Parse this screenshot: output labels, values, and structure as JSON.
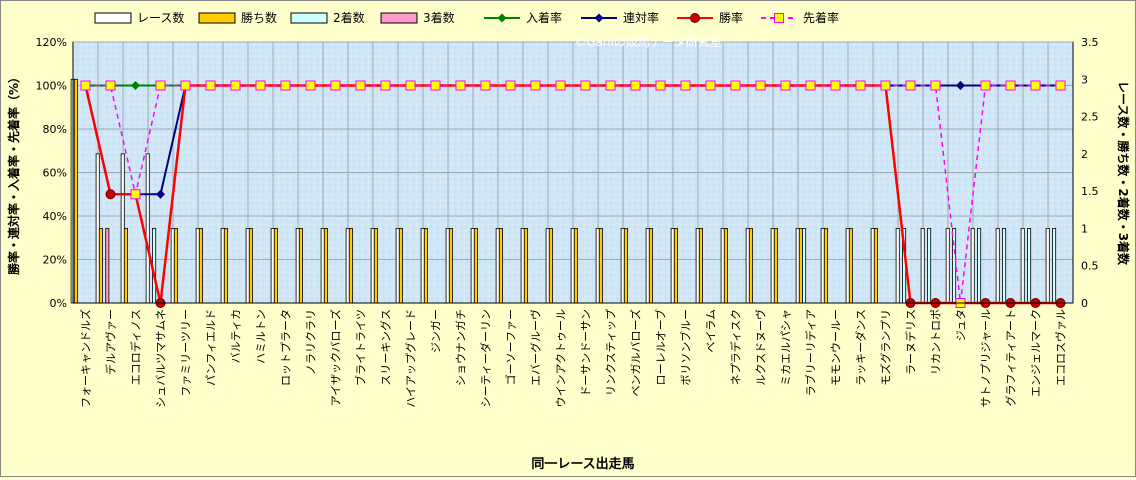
{
  "watermark": "©Ganiの競馬データ研究室",
  "chart_data": {
    "type": "bar+line",
    "title": "",
    "xlabel": "同一レース出走馬",
    "ylabel_left": "勝率・連対率・入着率・先着率（%）",
    "ylabel_right": "レース数・勝ち数・2着数・3着数",
    "ylim_left": [
      0,
      120
    ],
    "ylim_right": [
      0,
      3.5
    ],
    "yticks_left": [
      "0%",
      "20%",
      "40%",
      "60%",
      "80%",
      "100%",
      "120%"
    ],
    "yticks_right": [
      "0",
      "0.5",
      "1",
      "1.5",
      "2",
      "2.5",
      "3",
      "3.5"
    ],
    "grid": true,
    "legend_position": "top",
    "colors": {
      "races": "#ffffff",
      "wins": "#ffcc00",
      "second": "#ccffff",
      "third": "#ff99cc",
      "place_rate": "#008000",
      "rentai_rate": "#000080",
      "win_rate": "#ff0000",
      "lead_rate": "#ff00ff",
      "plot_bg": "#cfe6f7"
    },
    "categories": [
      "フォーキャンドルズ",
      "デルアヴァー",
      "エコロディノス",
      "シュバルツマサムネ",
      "ファミリーツリー",
      "パンフィエルド",
      "バルティカ",
      "ハミルトン",
      "ロットプラータ",
      "ノラリクラリ",
      "アイザックバローズ",
      "ブライトライツ",
      "スリーキングス",
      "ハイアップグレード",
      "ジンガー",
      "ショウナンガチ",
      "シーティーダーリン",
      "ゴーソーファー",
      "エバーグルーヴ",
      "ウインアクトゥール",
      "ドーサンドーサン",
      "リンクスティップ",
      "ベンガルバローズ",
      "ローレルオーブ",
      "ボリソンブルー",
      "ベイラム",
      "ネプラディスク",
      "ルクスドヌーヴ",
      "ミカエルパシャ",
      "ラブリーリディア",
      "モモンウールー",
      "ラッキーダンス",
      "モズグランプリ",
      "ラーヌデリス",
      "リカントロポ",
      "ジュタ",
      "サトノプリジャール",
      "グラフィティアート",
      "エンジェルマーク",
      "エコロスヴァル"
    ],
    "series": [
      {
        "name": "レース数",
        "kind": "bar",
        "axis": "right",
        "values": [
          3,
          2,
          2,
          2,
          1,
          1,
          1,
          1,
          1,
          1,
          1,
          1,
          1,
          1,
          1,
          1,
          1,
          1,
          1,
          1,
          1,
          1,
          1,
          1,
          1,
          1,
          1,
          1,
          1,
          1,
          1,
          1,
          1,
          1,
          1,
          1,
          1,
          1,
          1,
          1
        ]
      },
      {
        "name": "勝ち数",
        "kind": "bar",
        "axis": "right",
        "values": [
          3,
          1,
          1,
          0,
          1,
          1,
          1,
          1,
          1,
          1,
          1,
          1,
          1,
          1,
          1,
          1,
          1,
          1,
          1,
          1,
          1,
          1,
          1,
          1,
          1,
          1,
          1,
          1,
          1,
          1,
          1,
          1,
          1,
          0,
          0,
          0,
          0,
          0,
          0,
          0
        ]
      },
      {
        "name": "2着数",
        "kind": "bar",
        "axis": "right",
        "values": [
          0,
          0,
          0,
          1,
          0,
          0,
          0,
          0,
          0,
          0,
          0,
          0,
          0,
          0,
          0,
          0,
          0,
          0,
          0,
          0,
          0,
          0,
          0,
          0,
          0,
          0,
          0,
          0,
          0,
          1,
          0,
          0,
          0,
          1,
          1,
          1,
          1,
          1,
          1,
          1
        ]
      },
      {
        "name": "3着数",
        "kind": "bar",
        "axis": "right",
        "values": [
          0,
          1,
          0,
          0,
          0,
          0,
          0,
          0,
          0,
          0,
          0,
          0,
          0,
          0,
          0,
          0,
          0,
          0,
          0,
          0,
          0,
          0,
          0,
          0,
          0,
          0,
          0,
          0,
          0,
          0,
          0,
          0,
          0,
          0,
          0,
          0,
          0,
          0,
          0,
          0
        ]
      },
      {
        "name": "入着率",
        "kind": "line",
        "axis": "left",
        "values": [
          100,
          100,
          100,
          100,
          100,
          100,
          100,
          100,
          100,
          100,
          100,
          100,
          100,
          100,
          100,
          100,
          100,
          100,
          100,
          100,
          100,
          100,
          100,
          100,
          100,
          100,
          100,
          100,
          100,
          100,
          100,
          100,
          100,
          100,
          100,
          100,
          100,
          100,
          100,
          100
        ]
      },
      {
        "name": "連対率",
        "kind": "line",
        "axis": "left",
        "values": [
          100,
          50,
          50,
          50,
          100,
          100,
          100,
          100,
          100,
          100,
          100,
          100,
          100,
          100,
          100,
          100,
          100,
          100,
          100,
          100,
          100,
          100,
          100,
          100,
          100,
          100,
          100,
          100,
          100,
          100,
          100,
          100,
          100,
          100,
          100,
          100,
          100,
          100,
          100,
          100
        ]
      },
      {
        "name": "勝率",
        "kind": "line",
        "axis": "left",
        "values": [
          100,
          50,
          50,
          0,
          100,
          100,
          100,
          100,
          100,
          100,
          100,
          100,
          100,
          100,
          100,
          100,
          100,
          100,
          100,
          100,
          100,
          100,
          100,
          100,
          100,
          100,
          100,
          100,
          100,
          100,
          100,
          100,
          100,
          0,
          0,
          0,
          0,
          0,
          0,
          0
        ]
      },
      {
        "name": "先着率",
        "kind": "line",
        "axis": "left",
        "values": [
          100,
          100,
          50,
          100,
          100,
          100,
          100,
          100,
          100,
          100,
          100,
          100,
          100,
          100,
          100,
          100,
          100,
          100,
          100,
          100,
          100,
          100,
          100,
          100,
          100,
          100,
          100,
          100,
          100,
          100,
          100,
          100,
          100,
          100,
          100,
          0,
          100,
          100,
          100,
          100
        ]
      }
    ]
  }
}
